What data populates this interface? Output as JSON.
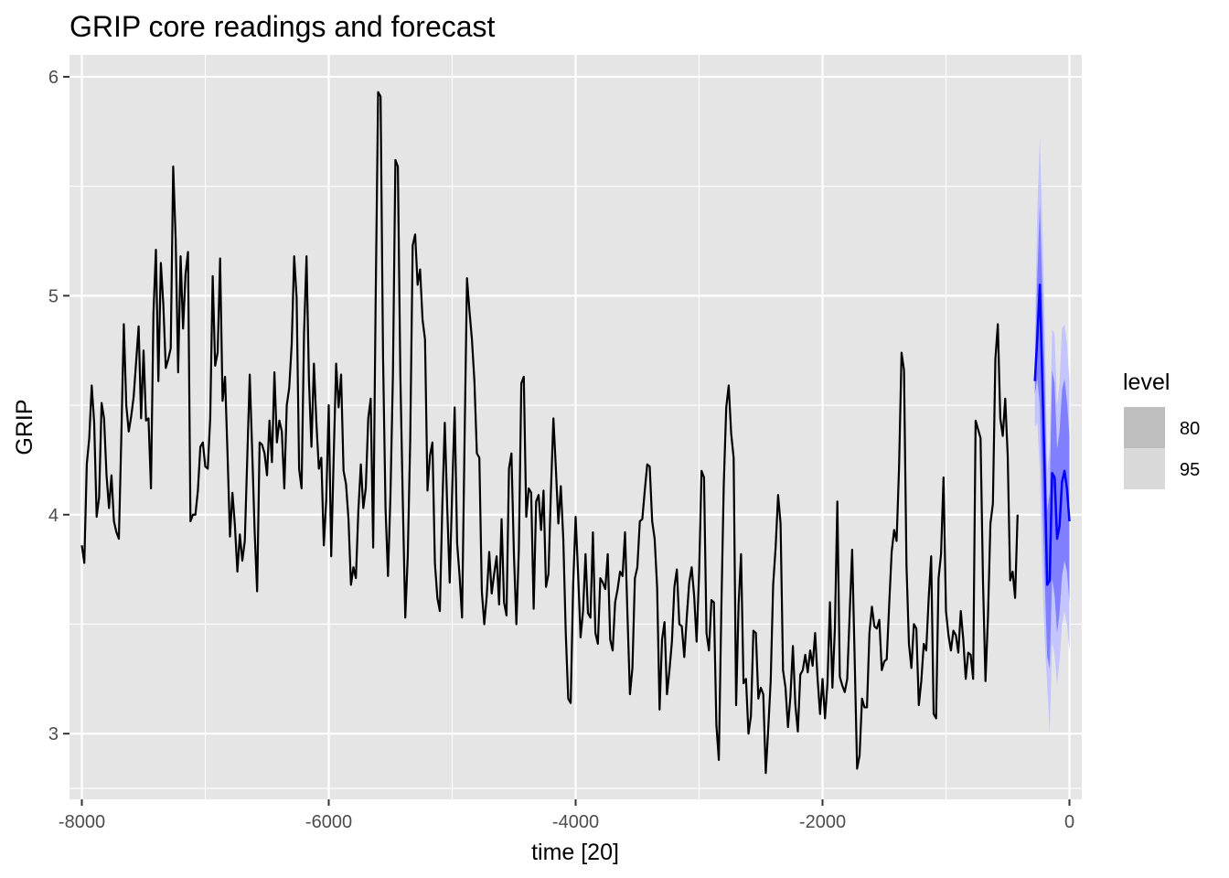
{
  "chart_data": {
    "type": "line",
    "title": "GRIP core readings and forecast",
    "xlabel": "time [20]",
    "ylabel": "GRIP",
    "xlim": [
      -8100,
      100
    ],
    "ylim": [
      2.7,
      6.1
    ],
    "x_ticks": [
      -8000,
      -6000,
      -4000,
      -2000,
      0
    ],
    "x_tick_labels": [
      "-8000",
      "-6000",
      "-4000",
      "-2000",
      "0"
    ],
    "y_ticks": [
      3,
      4,
      5,
      6
    ],
    "y_tick_labels": [
      "3",
      "4",
      "5",
      "6"
    ],
    "grid": true,
    "legend": {
      "title": "level",
      "position": "right",
      "entries": [
        {
          "label": "80",
          "color": "#bebebe"
        },
        {
          "label": "95",
          "color": "#d9d9d9"
        }
      ]
    },
    "colors": {
      "history": "#000000",
      "forecast": "#0000ff",
      "band80": "#8080ff",
      "band95": "#c4c4ff",
      "panel": "#e5e5e5",
      "grid": "#ffffff"
    },
    "series": [
      {
        "role": "history",
        "x_start": -8000,
        "x_step": 20,
        "values": [
          3.86,
          3.78,
          4.23,
          4.35,
          4.59,
          4.42,
          3.99,
          4.08,
          4.51,
          4.44,
          4.18,
          4.03,
          4.18,
          3.97,
          3.92,
          3.89,
          4.36,
          4.87,
          4.5,
          4.38,
          4.45,
          4.54,
          4.7,
          4.86,
          4.44,
          4.75,
          4.43,
          4.44,
          4.12,
          4.92,
          5.21,
          4.61,
          5.15,
          4.96,
          4.67,
          4.71,
          4.76,
          5.59,
          5.26,
          4.65,
          5.18,
          4.85,
          5.1,
          5.2,
          3.97,
          4.0,
          4.0,
          4.11,
          4.31,
          4.33,
          4.22,
          4.21,
          4.44,
          5.09,
          4.68,
          4.74,
          5.17,
          4.52,
          4.63,
          4.28,
          3.9,
          4.1,
          3.95,
          3.74,
          3.91,
          3.79,
          3.88,
          4.26,
          4.64,
          4.29,
          3.92,
          3.65,
          4.33,
          4.32,
          4.28,
          4.18,
          4.43,
          4.24,
          4.65,
          4.33,
          4.43,
          4.38,
          4.12,
          4.5,
          4.58,
          4.78,
          5.18,
          4.99,
          4.21,
          4.12,
          4.83,
          5.18,
          4.61,
          4.31,
          4.69,
          4.42,
          4.21,
          4.26,
          3.86,
          4.07,
          4.5,
          3.81,
          4.26,
          4.69,
          4.49,
          4.64,
          4.2,
          4.14,
          3.98,
          3.68,
          3.76,
          3.71,
          4.02,
          4.23,
          4.03,
          4.12,
          4.44,
          4.53,
          3.85,
          4.98,
          5.93,
          5.91,
          4.72,
          4.03,
          3.72,
          4.09,
          4.64,
          5.62,
          5.59,
          4.64,
          4.06,
          3.53,
          3.81,
          4.34,
          5.23,
          5.28,
          5.05,
          5.12,
          4.89,
          4.8,
          4.11,
          4.27,
          4.33,
          3.78,
          3.62,
          3.56,
          4.04,
          4.42,
          4.03,
          3.69,
          4.11,
          4.49,
          3.87,
          3.72,
          3.53,
          4.33,
          5.08,
          4.93,
          4.8,
          4.61,
          4.28,
          4.26,
          3.65,
          3.5,
          3.63,
          3.83,
          3.64,
          3.73,
          3.81,
          3.59,
          3.98,
          3.6,
          3.54,
          4.21,
          4.28,
          3.82,
          3.5,
          3.84,
          4.6,
          4.63,
          3.99,
          4.12,
          4.1,
          3.57,
          4.06,
          4.09,
          3.93,
          4.11,
          3.67,
          3.73,
          4.11,
          4.44,
          4.21,
          3.96,
          4.13,
          3.89,
          3.46,
          3.16,
          3.14,
          3.68,
          3.99,
          3.73,
          3.44,
          3.56,
          3.82,
          3.55,
          3.53,
          3.92,
          3.46,
          3.41,
          3.71,
          3.69,
          3.66,
          3.82,
          3.43,
          3.38,
          3.6,
          3.66,
          3.74,
          3.72,
          3.92,
          3.54,
          3.18,
          3.3,
          3.71,
          3.76,
          3.97,
          3.98,
          4.11,
          4.23,
          4.22,
          3.97,
          3.89,
          3.67,
          3.11,
          3.43,
          3.51,
          3.18,
          3.29,
          3.42,
          3.67,
          3.75,
          3.5,
          3.49,
          3.35,
          3.53,
          3.69,
          3.76,
          3.63,
          3.42,
          3.73,
          4.2,
          4.17,
          3.46,
          3.38,
          3.61,
          3.6,
          3.04,
          2.88,
          3.56,
          4.14,
          4.49,
          4.59,
          4.37,
          4.26,
          3.13,
          3.59,
          3.82,
          3.23,
          3.25,
          3.0,
          3.08,
          3.47,
          3.46,
          3.16,
          3.21,
          3.18,
          2.82,
          3.02,
          3.24,
          3.68,
          3.85,
          4.09,
          3.96,
          3.29,
          3.21,
          3.03,
          3.17,
          3.4,
          3.13,
          3.01,
          3.27,
          3.29,
          3.36,
          3.28,
          3.38,
          3.31,
          3.46,
          3.25,
          3.09,
          3.25,
          3.07,
          3.23,
          3.6,
          3.21,
          3.48,
          4.06,
          3.26,
          3.22,
          3.19,
          3.25,
          3.55,
          3.84,
          3.35,
          2.84,
          2.9,
          3.16,
          3.12,
          3.12,
          3.46,
          3.58,
          3.49,
          3.48,
          3.52,
          3.29,
          3.33,
          3.34,
          3.59,
          3.83,
          3.93,
          3.88,
          4.22,
          4.74,
          4.66,
          3.77,
          3.41,
          3.3,
          3.5,
          3.48,
          3.13,
          3.24,
          3.41,
          3.38,
          3.62,
          3.81,
          3.09,
          3.07,
          3.71,
          3.82,
          4.17,
          3.56,
          3.45,
          3.38,
          3.47,
          3.45,
          3.37,
          3.56,
          3.43,
          3.25,
          3.37,
          3.36,
          3.25,
          4.43,
          4.39,
          4.35,
          3.69,
          3.24,
          3.53,
          3.96,
          4.05,
          4.71,
          4.87,
          4.44,
          4.36,
          4.53,
          4.27,
          3.7,
          3.74,
          3.62,
          4.0
        ]
      },
      {
        "role": "forecast",
        "x": [
          -280,
          -260,
          -240,
          -220,
          -200,
          -180,
          -160,
          -140,
          -120,
          -100,
          -80,
          -60,
          -40,
          -20,
          0
        ],
        "values": [
          4.61,
          4.81,
          5.05,
          4.62,
          4.18,
          3.68,
          3.7,
          4.19,
          4.17,
          3.89,
          3.95,
          4.15,
          4.2,
          4.12,
          3.97
        ],
        "lo80": [
          4.55,
          4.62,
          4.5,
          4.07,
          3.7,
          3.35,
          3.3,
          3.71,
          3.63,
          3.46,
          3.55,
          3.72,
          3.79,
          3.74,
          3.6
        ],
        "hi80": [
          4.67,
          5.1,
          5.42,
          5.05,
          4.63,
          4.02,
          4.1,
          4.66,
          4.6,
          4.3,
          4.38,
          4.57,
          4.62,
          4.52,
          4.36
        ],
        "lo95": [
          4.4,
          4.42,
          4.2,
          3.74,
          3.42,
          3.22,
          3.0,
          3.42,
          3.36,
          3.22,
          3.33,
          3.5,
          3.56,
          3.5,
          3.38
        ],
        "hi95": [
          4.8,
          5.4,
          5.72,
          5.35,
          4.9,
          4.2,
          4.3,
          4.85,
          4.82,
          4.5,
          4.6,
          4.85,
          4.87,
          4.78,
          4.61
        ]
      }
    ]
  }
}
